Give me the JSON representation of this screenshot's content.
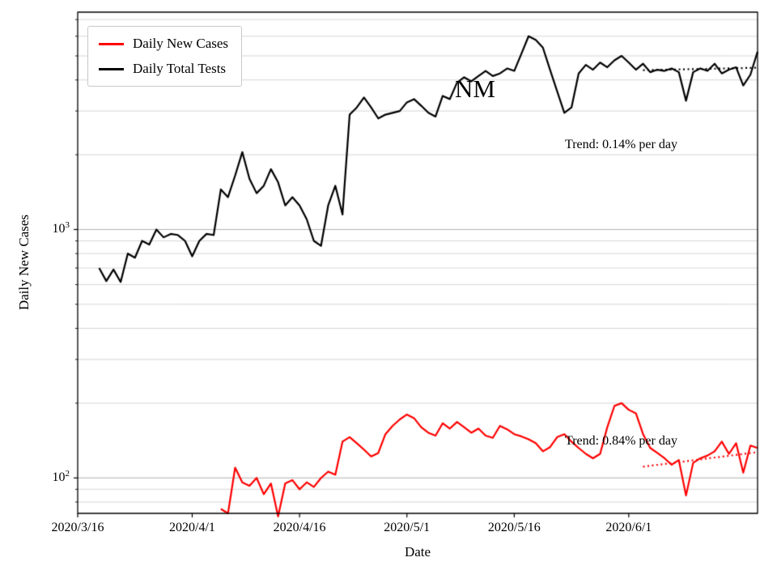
{
  "chart_data": {
    "type": "line",
    "yscale": "log",
    "xlabel": "Date",
    "ylabel": "Daily New Cases",
    "legend_position": "upper left",
    "grid": {
      "major_color": "#b0b0b0",
      "minor_color": "#d6d6d6"
    },
    "xlim": [
      "2020/3/16",
      "2020/6/19"
    ],
    "ylim": [
      72,
      7500
    ],
    "x_ticks": [
      {
        "date": "2020/3/16",
        "label": "2020/3/16"
      },
      {
        "date": "2020/4/1",
        "label": "2020/4/1"
      },
      {
        "date": "2020/4/16",
        "label": "2020/4/16"
      },
      {
        "date": "2020/5/1",
        "label": "2020/5/1"
      },
      {
        "date": "2020/5/16",
        "label": "2020/5/16"
      },
      {
        "date": "2020/6/1",
        "label": "2020/6/1"
      }
    ],
    "y_ticks": [
      {
        "value": 100,
        "base": "10",
        "exp": "2"
      },
      {
        "value": 1000,
        "base": "10",
        "exp": "3"
      }
    ],
    "annotations": {
      "state": "NM"
    },
    "x": [
      "2020/3/19",
      "2020/3/20",
      "2020/3/21",
      "2020/3/22",
      "2020/3/23",
      "2020/3/24",
      "2020/3/25",
      "2020/3/26",
      "2020/3/27",
      "2020/3/28",
      "2020/3/29",
      "2020/3/30",
      "2020/3/31",
      "2020/4/1",
      "2020/4/2",
      "2020/4/3",
      "2020/4/4",
      "2020/4/5",
      "2020/4/6",
      "2020/4/7",
      "2020/4/8",
      "2020/4/9",
      "2020/4/10",
      "2020/4/11",
      "2020/4/12",
      "2020/4/13",
      "2020/4/14",
      "2020/4/15",
      "2020/4/16",
      "2020/4/17",
      "2020/4/18",
      "2020/4/19",
      "2020/4/20",
      "2020/4/21",
      "2020/4/22",
      "2020/4/23",
      "2020/4/24",
      "2020/4/25",
      "2020/4/26",
      "2020/4/27",
      "2020/4/28",
      "2020/4/29",
      "2020/4/30",
      "2020/5/1",
      "2020/5/2",
      "2020/5/3",
      "2020/5/4",
      "2020/5/5",
      "2020/5/6",
      "2020/5/7",
      "2020/5/8",
      "2020/5/9",
      "2020/5/10",
      "2020/5/11",
      "2020/5/12",
      "2020/5/13",
      "2020/5/14",
      "2020/5/15",
      "2020/5/16",
      "2020/5/17",
      "2020/5/18",
      "2020/5/19",
      "2020/5/20",
      "2020/5/21",
      "2020/5/22",
      "2020/5/23",
      "2020/5/24",
      "2020/5/25",
      "2020/5/26",
      "2020/5/27",
      "2020/5/28",
      "2020/5/29",
      "2020/5/30",
      "2020/5/31",
      "2020/6/1",
      "2020/6/2",
      "2020/6/3",
      "2020/6/4",
      "2020/6/5",
      "2020/6/6",
      "2020/6/7",
      "2020/6/8",
      "2020/6/9",
      "2020/6/10",
      "2020/6/11",
      "2020/6/12",
      "2020/6/13",
      "2020/6/14",
      "2020/6/15",
      "2020/6/16",
      "2020/6/17",
      "2020/6/18",
      "2020/6/19"
    ],
    "series": [
      {
        "name": "Daily New Cases",
        "color": "#ff0000",
        "values": [
          null,
          null,
          null,
          null,
          null,
          null,
          null,
          null,
          null,
          null,
          null,
          null,
          null,
          null,
          null,
          null,
          null,
          75,
          72,
          110,
          96,
          93,
          100,
          86,
          95,
          70,
          95,
          98,
          90,
          96,
          92,
          100,
          106,
          103,
          140,
          146,
          138,
          130,
          122,
          126,
          150,
          162,
          172,
          180,
          174,
          160,
          152,
          148,
          166,
          158,
          168,
          160,
          152,
          158,
          148,
          145,
          162,
          157,
          150,
          147,
          143,
          138,
          128,
          133,
          146,
          150,
          140,
          132,
          125,
          120,
          125,
          160,
          195,
          200,
          188,
          182,
          150,
          132,
          126,
          120,
          113,
          118,
          85,
          115,
          120,
          123,
          128,
          140,
          125,
          138,
          105,
          135,
          132
        ]
      },
      {
        "name": "Daily Total Tests",
        "color": "#000000",
        "values": [
          700,
          620,
          690,
          615,
          800,
          770,
          900,
          870,
          1000,
          930,
          960,
          950,
          900,
          780,
          900,
          960,
          950,
          1450,
          1350,
          1650,
          2050,
          1600,
          1400,
          1500,
          1750,
          1550,
          1250,
          1350,
          1250,
          1100,
          900,
          860,
          1250,
          1500,
          1150,
          2900,
          3100,
          3400,
          3100,
          2800,
          2900,
          2950,
          3000,
          3250,
          3350,
          3150,
          2950,
          2850,
          3450,
          3350,
          3900,
          4100,
          3950,
          4150,
          4350,
          4150,
          4250,
          4450,
          4350,
          5100,
          6000,
          5800,
          5400,
          4400,
          3600,
          2950,
          3100,
          4250,
          4600,
          4400,
          4700,
          4500,
          4800,
          5000,
          4700,
          4400,
          4650,
          4300,
          4400,
          4350,
          4450,
          4300,
          3300,
          4300,
          4450,
          4350,
          4650,
          4250,
          4400,
          4500,
          3800,
          4200,
          5200
        ]
      }
    ],
    "trends": [
      {
        "series": "Daily Total Tests",
        "label": "Trend: 0.14% per day",
        "color": "#000000",
        "start_date": "2020/6/3",
        "end_date": "2020/6/19",
        "start_value": 4380,
        "end_value": 4480
      },
      {
        "series": "Daily New Cases",
        "label": "Trend: 0.84% per day",
        "color": "#ff0000",
        "start_date": "2020/6/3",
        "end_date": "2020/6/19",
        "start_value": 111,
        "end_value": 127
      }
    ]
  }
}
